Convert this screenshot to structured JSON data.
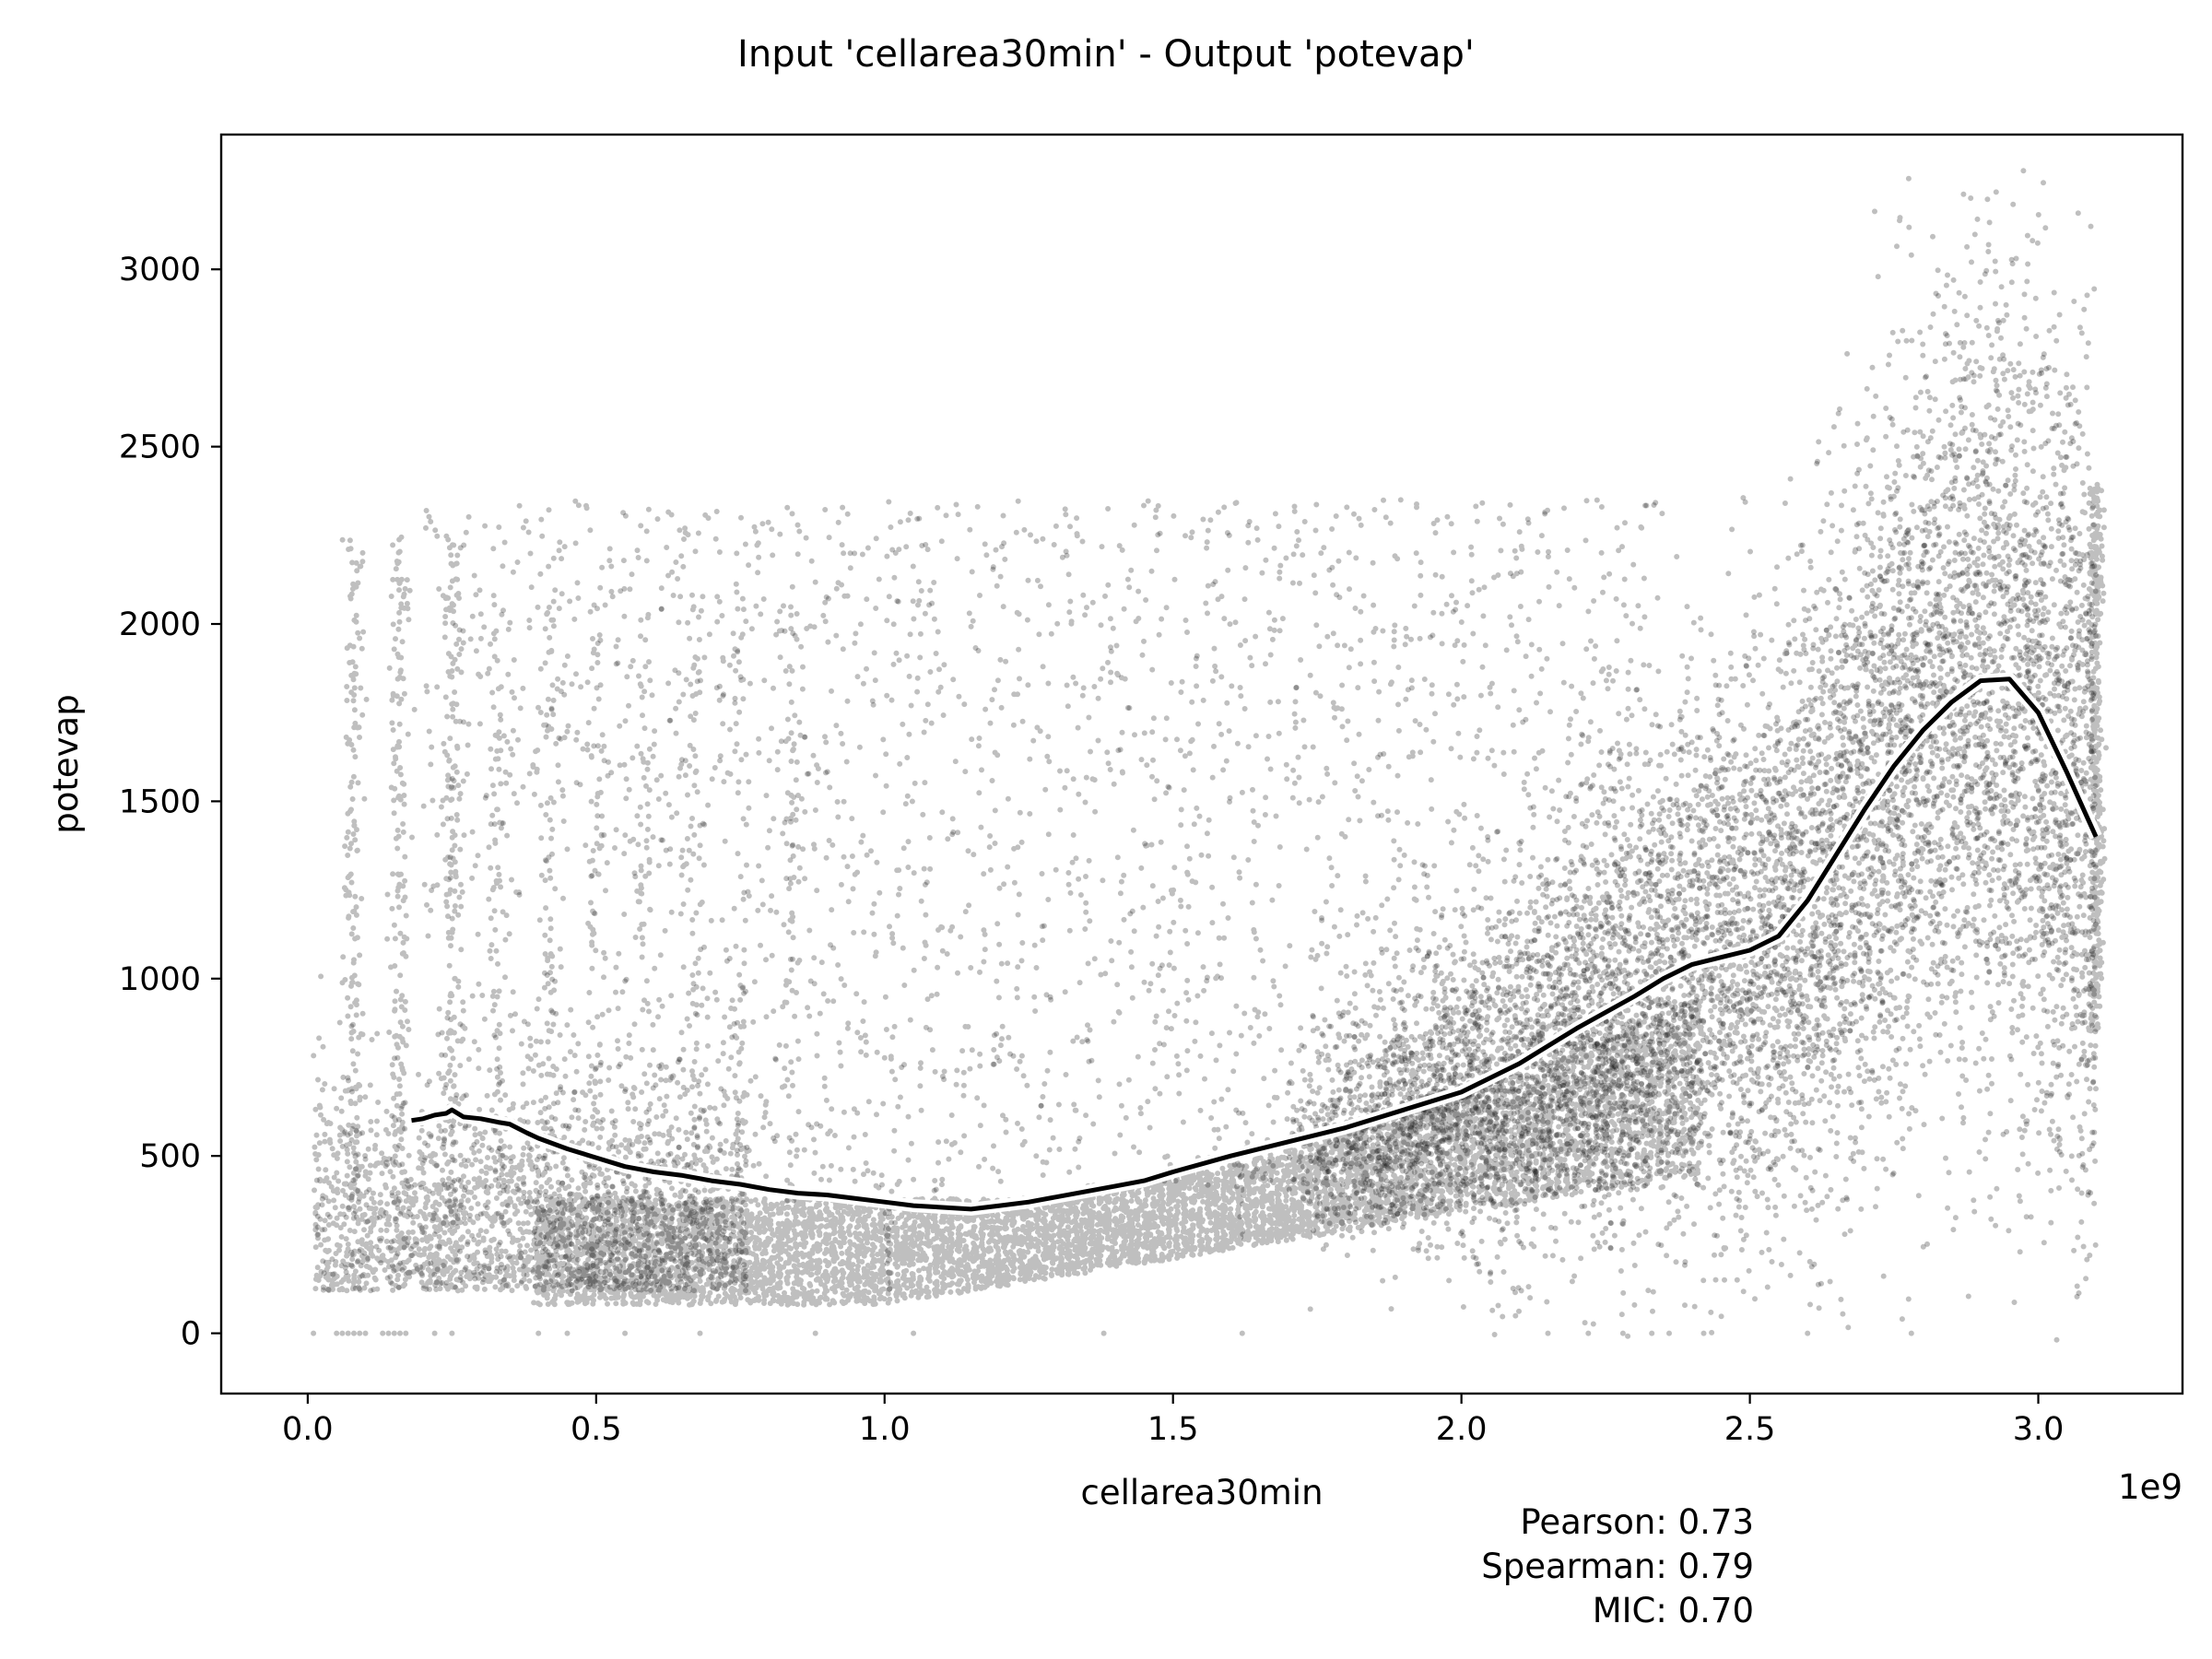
{
  "chart_data": {
    "type": "scatter",
    "title": "Input 'cellarea30min' - Output 'potevap'",
    "xlabel": "cellarea30min",
    "ylabel": "potevap",
    "x_offset_label": "1e9",
    "xlim": [
      -0.15,
      3.25
    ],
    "ylim": [
      -170,
      3380
    ],
    "x_ticks": [
      0.0,
      0.5,
      1.0,
      1.5,
      2.0,
      2.5,
      3.0
    ],
    "x_tick_labels": [
      "0.0",
      "0.5",
      "1.0",
      "1.5",
      "2.0",
      "2.5",
      "3.0"
    ],
    "y_ticks": [
      0,
      500,
      1000,
      1500,
      2000,
      2500,
      3000
    ],
    "y_tick_labels": [
      "0",
      "500",
      "1000",
      "1500",
      "2000",
      "2500",
      "3000"
    ],
    "grid": false,
    "legend": "none",
    "series": [
      {
        "kind": "trend-line",
        "x": [
          0.18,
          0.2,
          0.22,
          0.24,
          0.25,
          0.27,
          0.3,
          0.33,
          0.35,
          0.38,
          0.4,
          0.45,
          0.5,
          0.55,
          0.6,
          0.65,
          0.7,
          0.75,
          0.8,
          0.85,
          0.9,
          0.95,
          1.0,
          1.05,
          1.1,
          1.15,
          1.2,
          1.25,
          1.3,
          1.35,
          1.4,
          1.45,
          1.5,
          1.6,
          1.7,
          1.8,
          1.9,
          2.0,
          2.1,
          2.2,
          2.3,
          2.35,
          2.4,
          2.45,
          2.5,
          2.55,
          2.6,
          2.65,
          2.7,
          2.75,
          2.8,
          2.85,
          2.9,
          2.95,
          3.0,
          3.05,
          3.1
        ],
        "y": [
          600,
          605,
          615,
          620,
          630,
          610,
          605,
          595,
          590,
          565,
          550,
          520,
          495,
          470,
          455,
          445,
          430,
          420,
          405,
          395,
          390,
          380,
          370,
          360,
          355,
          350,
          360,
          370,
          385,
          400,
          415,
          430,
          455,
          500,
          540,
          580,
          630,
          680,
          760,
          860,
          950,
          1000,
          1040,
          1060,
          1080,
          1120,
          1220,
          1350,
          1480,
          1600,
          1700,
          1780,
          1840,
          1845,
          1750,
          1580,
          1400
        ]
      }
    ],
    "scatter_description_values": {
      "point_count_approx": 60000,
      "point_color": "#000000",
      "point_alpha": 0.25
    },
    "annotations": [
      "Pearson: 0.73",
      "Spearman: 0.79",
      "MIC: 0.70"
    ]
  }
}
